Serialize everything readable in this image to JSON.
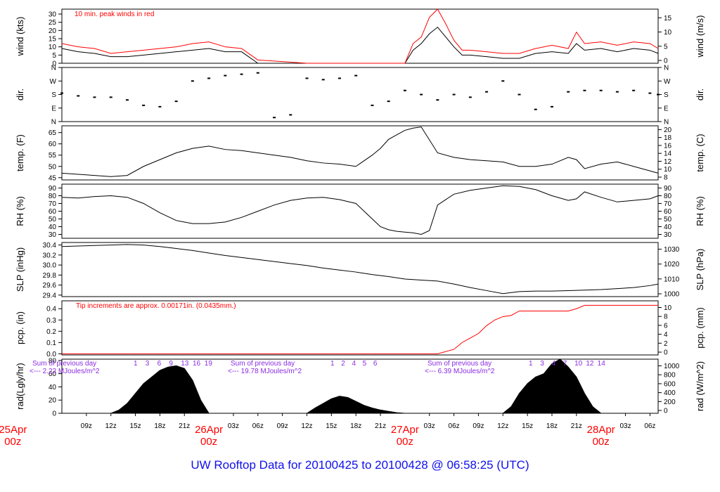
{
  "chart_data": {
    "type": "line",
    "title": "UW Rooftop Data for 20100425  to  20100428 @ 06:58:25  (UTC)",
    "time_axis": {
      "ticks": [
        "09z",
        "12z",
        "15z",
        "18z",
        "21z",
        "03z",
        "06z",
        "09z",
        "12z",
        "15z",
        "18z",
        "21z",
        "03z",
        "06z",
        "09z",
        "12z",
        "15z",
        "18z",
        "21z",
        "03z",
        "06z"
      ],
      "days": [
        {
          "label": "25Apr",
          "sub": "00z"
        },
        {
          "label": "26Apr",
          "sub": "00z"
        },
        {
          "label": "27Apr",
          "sub": "00z"
        },
        {
          "label": "28Apr",
          "sub": "00z"
        }
      ],
      "range_hours": [
        6,
        79
      ]
    },
    "panels": [
      {
        "id": "wind",
        "ylabel_left": "wind (kts)",
        "ylabel_right": "wind (m/s)",
        "ylim": [
          0,
          33
        ],
        "left_ticks": [
          "0",
          "5",
          "10",
          "15",
          "20",
          "25",
          "30"
        ],
        "right_ticks": [
          "0",
          "5",
          "10",
          "15"
        ],
        "annotation": "10 min. peak winds in red",
        "series": [
          {
            "color": "#000000",
            "x": [
              6,
              8,
              10,
              12,
              14,
              16,
              18,
              20,
              22,
              24,
              26,
              28,
              30,
              36,
              42,
              48,
              49,
              50,
              51,
              52,
              53,
              54,
              55,
              56,
              58,
              60,
              62,
              64,
              66,
              68,
              69,
              70,
              72,
              74,
              76,
              78,
              79
            ],
            "values": [
              9,
              7,
              6,
              4,
              4,
              5,
              6,
              7,
              8,
              9,
              7,
              7,
              0,
              0,
              0,
              0,
              8,
              12,
              18,
              22,
              16,
              10,
              5,
              5,
              4,
              3,
              3,
              6,
              7,
              6,
              12,
              8,
              9,
              7,
              9,
              8,
              6
            ]
          },
          {
            "color": "#ff0000",
            "x": [
              6,
              8,
              10,
              12,
              14,
              16,
              18,
              20,
              22,
              24,
              26,
              28,
              30,
              36,
              42,
              48,
              49,
              50,
              51,
              52,
              53,
              54,
              55,
              56,
              58,
              60,
              62,
              64,
              66,
              68,
              69,
              70,
              72,
              74,
              76,
              78,
              79
            ],
            "values": [
              12,
              10,
              9,
              6,
              7,
              8,
              9,
              10,
              12,
              13,
              10,
              9,
              2,
              0,
              0,
              0,
              12,
              16,
              28,
              33,
              24,
              14,
              8,
              8,
              7,
              6,
              6,
              9,
              11,
              9,
              19,
              12,
              13,
              11,
              13,
              12,
              9
            ]
          }
        ]
      },
      {
        "id": "dir",
        "ylabel_left": "dir.",
        "ylabel_right": "dir.",
        "ylim": [
          0,
          4
        ],
        "left_ticks": [
          "N",
          "E",
          "S",
          "W",
          "N"
        ],
        "right_ticks": [
          "N",
          "E",
          "S",
          "W",
          "N"
        ],
        "series": [
          {
            "color": "#000000",
            "x": [
              6,
              8,
              10,
              12,
              14,
              16,
              18,
              20,
              22,
              24,
              26,
              28,
              30,
              32,
              34,
              36,
              38,
              40,
              42,
              44,
              46,
              48,
              50,
              52,
              54,
              56,
              58,
              60,
              62,
              64,
              66,
              68,
              70,
              72,
              74,
              76,
              78,
              79
            ],
            "values": [
              2.1,
              1.9,
              1.8,
              1.8,
              1.6,
              1.2,
              1.1,
              1.5,
              3.0,
              3.2,
              3.4,
              3.5,
              3.6,
              0.3,
              0.5,
              3.2,
              3.1,
              3.2,
              3.4,
              1.2,
              1.5,
              2.3,
              2.0,
              1.6,
              2.0,
              1.8,
              2.2,
              3.0,
              2.0,
              0.9,
              1.1,
              2.2,
              2.3,
              2.3,
              2.2,
              2.3,
              2.1,
              2.0
            ]
          }
        ]
      },
      {
        "id": "temp",
        "ylabel_left": "temp. (F)",
        "ylabel_right": "temp. (C)",
        "ylim": [
          44,
          68
        ],
        "left_ticks": [
          "45",
          "50",
          "55",
          "60",
          "65"
        ],
        "right_ticks": [
          "8",
          "10",
          "12",
          "14",
          "16",
          "18",
          "20"
        ],
        "series": [
          {
            "color": "#000000",
            "x": [
              6,
              8,
              10,
              12,
              14,
              16,
              18,
              20,
              22,
              24,
              26,
              28,
              30,
              32,
              34,
              36,
              38,
              40,
              42,
              44,
              45,
              46,
              47,
              48,
              49,
              50,
              52,
              54,
              56,
              58,
              60,
              62,
              64,
              66,
              68,
              69,
              70,
              72,
              74,
              76,
              78,
              79
            ],
            "values": [
              47,
              46.5,
              46,
              45.5,
              46,
              50,
              53,
              56,
              58,
              59,
              57.5,
              57,
              56,
              55,
              54,
              52.5,
              51.5,
              51,
              50,
              55,
              58,
              62,
              64,
              66,
              67,
              67.5,
              56,
              54,
              53,
              52.5,
              52,
              50,
              50,
              51,
              54,
              53,
              49,
              51,
              52,
              50,
              48,
              47
            ]
          }
        ]
      },
      {
        "id": "rh",
        "ylabel_left": "RH (%)",
        "ylabel_right": "RH (%)",
        "ylim": [
          25,
          95
        ],
        "left_ticks": [
          "30",
          "40",
          "50",
          "60",
          "70",
          "80",
          "90"
        ],
        "right_ticks": [
          "30",
          "40",
          "50",
          "60",
          "70",
          "80",
          "90"
        ],
        "series": [
          {
            "color": "#000000",
            "x": [
              6,
              8,
              10,
              12,
              14,
              16,
              18,
              20,
              22,
              24,
              26,
              28,
              30,
              32,
              34,
              36,
              38,
              40,
              42,
              44,
              45,
              46,
              47,
              48,
              49,
              50,
              51,
              52,
              54,
              56,
              58,
              60,
              62,
              64,
              66,
              68,
              69,
              70,
              72,
              74,
              76,
              78,
              79
            ],
            "values": [
              78,
              77,
              79,
              80,
              78,
              70,
              58,
              48,
              44,
              44,
              46,
              52,
              60,
              68,
              74,
              77,
              78,
              75,
              70,
              50,
              40,
              36,
              34,
              33,
              32,
              30,
              35,
              68,
              82,
              87,
              90,
              93,
              92,
              88,
              80,
              74,
              76,
              85,
              78,
              72,
              74,
              76,
              80
            ]
          }
        ]
      },
      {
        "id": "slp",
        "ylabel_left": "SLP (inHg)",
        "ylabel_right": "SLP (hPa)",
        "ylim": [
          29.37,
          30.45
        ],
        "left_ticks": [
          "29.4",
          "29.6",
          "29.8",
          "30.0",
          "30.2",
          "30.4"
        ],
        "right_ticks": [
          "1000",
          "1010",
          "1020",
          "1030"
        ],
        "series": [
          {
            "color": "#000000",
            "x": [
              6,
              8,
              10,
              12,
              14,
              16,
              18,
              20,
              22,
              24,
              26,
              28,
              30,
              32,
              34,
              36,
              38,
              40,
              42,
              44,
              46,
              48,
              50,
              52,
              54,
              56,
              58,
              60,
              62,
              64,
              66,
              68,
              70,
              72,
              74,
              76,
              78,
              79
            ],
            "values": [
              30.37,
              30.38,
              30.39,
              30.4,
              30.41,
              30.4,
              30.37,
              30.33,
              30.29,
              30.24,
              30.19,
              30.15,
              30.11,
              30.07,
              30.03,
              29.99,
              29.94,
              29.9,
              29.86,
              29.81,
              29.77,
              29.72,
              29.7,
              29.68,
              29.62,
              29.55,
              29.49,
              29.43,
              29.47,
              29.48,
              29.48,
              29.49,
              29.5,
              29.51,
              29.53,
              29.55,
              29.59,
              29.62
            ]
          }
        ]
      },
      {
        "id": "pcp",
        "ylabel_left": "pcp. (in)",
        "ylabel_right": "pcp. (mm)",
        "ylim": [
          -0.01,
          0.47
        ],
        "left_ticks": [
          "0.0",
          "0.1",
          "0.2",
          "0.3",
          "0.4"
        ],
        "right_ticks": [
          "0",
          "2",
          "4",
          "6",
          "8",
          "10"
        ],
        "annotation": "Tip increments are approx. 0.00171in. (0.0435mm.)",
        "series": [
          {
            "color": "#ff0000",
            "x": [
              6,
              30,
              48,
              50,
              52,
              54,
              55,
              56,
              57,
              58,
              59,
              60,
              61,
              62,
              64,
              66,
              67,
              68,
              69,
              70,
              72,
              74,
              76,
              78,
              79
            ],
            "values": [
              0,
              0,
              0,
              0,
              0,
              0.04,
              0.1,
              0.14,
              0.18,
              0.25,
              0.3,
              0.33,
              0.34,
              0.38,
              0.38,
              0.38,
              0.38,
              0.38,
              0.4,
              0.43,
              0.43,
              0.43,
              0.43,
              0.43,
              0.43
            ]
          }
        ]
      },
      {
        "id": "rad",
        "ylabel_left": "rad(Lgly/hr)",
        "ylabel_right": "rad (W/m^2)",
        "ylim": [
          0,
          82
        ],
        "left_ticks": [
          "0",
          "20",
          "40",
          "60",
          "80"
        ],
        "right_ticks": [
          "0",
          "200",
          "400",
          "600",
          "800",
          "1000"
        ],
        "series": [
          {
            "color": "#000000",
            "x": [
              6,
              12,
              13,
              14,
              15,
              16,
              17,
              18,
              19,
              20,
              21,
              22,
              23,
              24,
              36,
              37,
              38,
              39,
              40,
              41,
              42,
              43,
              44,
              45,
              46,
              47,
              48,
              60,
              61,
              62,
              63,
              64,
              65,
              66,
              67,
              68,
              69,
              70,
              71,
              72
            ],
            "values": [
              0,
              0,
              5,
              15,
              30,
              45,
              55,
              65,
              70,
              72,
              68,
              50,
              20,
              0,
              0,
              8,
              15,
              22,
              26,
              24,
              18,
              12,
              8,
              5,
              3,
              1,
              0,
              0,
              10,
              30,
              45,
              55,
              60,
              75,
              82,
              70,
              55,
              30,
              10,
              0
            ]
          }
        ]
      }
    ],
    "rad_notes": [
      {
        "line1": "Sum of previous day",
        "line2": "<--- 2.22 MJoules/m^2"
      },
      {
        "line1": "Sum of previous day",
        "line2": "<--- 19.78 MJoules/m^2"
      },
      {
        "line1": "Sum of previous day",
        "line2": "<--- 6.39 MJoules/m^2"
      }
    ],
    "rad_hours": [
      {
        "day": 0,
        "labels": [
          "1",
          "3",
          "6",
          "9",
          "13",
          "16",
          "19"
        ]
      },
      {
        "day": 1,
        "labels": [
          "1",
          "2",
          "4",
          "5",
          "6"
        ]
      },
      {
        "day": 2,
        "labels": [
          "1",
          "3",
          "4",
          "7",
          "10",
          "12",
          "14"
        ]
      }
    ]
  }
}
